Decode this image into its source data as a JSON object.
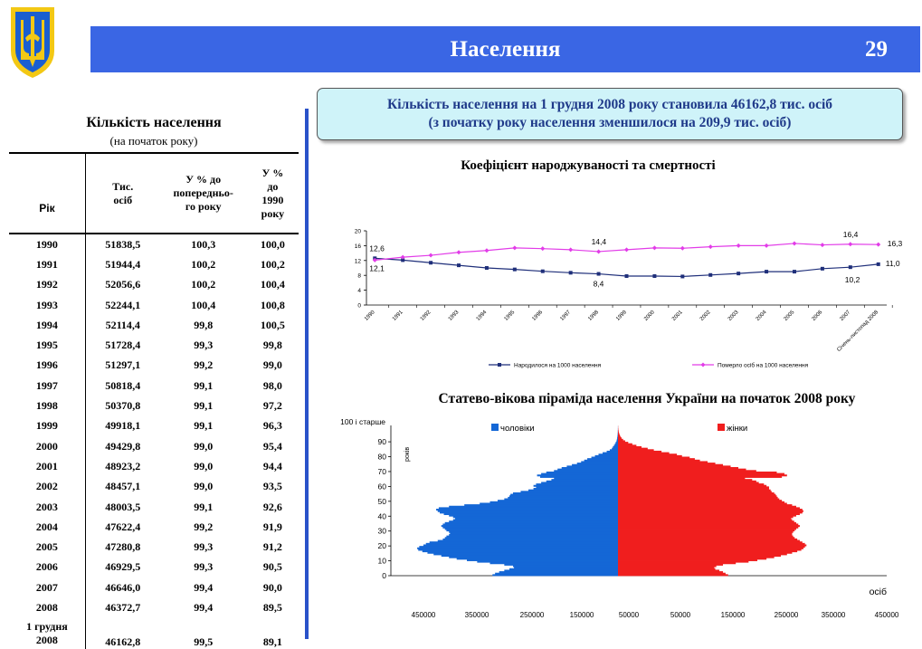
{
  "header": {
    "title": "Населення",
    "page_number": "29"
  },
  "summary": {
    "line1": "Кількість населення на 1 грудня 2008 року становила 46162,8 тис. осіб",
    "line2": "(з початку року населення зменшилося на 209,9 тис. осіб)"
  },
  "table": {
    "title": "Кількість населення",
    "subtitle": "(на початок року)",
    "headers": [
      "Рік",
      "Тис. осіб",
      "У % до попереднього року",
      "У % до 1990 року"
    ],
    "header_prev_lines": [
      "У % до",
      "попередньо-",
      "го року"
    ],
    "header_1990_lines": [
      "У %",
      "до",
      "1990",
      "року"
    ],
    "header_pop_lines": [
      "Тис.",
      "осіб"
    ],
    "rows": [
      [
        "1990",
        "51838,5",
        "100,3",
        "100,0"
      ],
      [
        "1991",
        "51944,4",
        "100,2",
        "100,2"
      ],
      [
        "1992",
        "52056,6",
        "100,2",
        "100,4"
      ],
      [
        "1993",
        "52244,1",
        "100,4",
        "100,8"
      ],
      [
        "1994",
        "52114,4",
        "99,8",
        "100,5"
      ],
      [
        "1995",
        "51728,4",
        "99,3",
        "99,8"
      ],
      [
        "1996",
        "51297,1",
        "99,2",
        "99,0"
      ],
      [
        "1997",
        "50818,4",
        "99,1",
        "98,0"
      ],
      [
        "1998",
        "50370,8",
        "99,1",
        "97,2"
      ],
      [
        "1999",
        "49918,1",
        "99,1",
        "96,3"
      ],
      [
        "2000",
        "49429,8",
        "99,0",
        "95,4"
      ],
      [
        "2001",
        "48923,2",
        "99,0",
        "94,4"
      ],
      [
        "2002",
        "48457,1",
        "99,0",
        "93,5"
      ],
      [
        "2003",
        "48003,5",
        "99,1",
        "92,6"
      ],
      [
        "2004",
        "47622,4",
        "99,2",
        "91,9"
      ],
      [
        "2005",
        "47280,8",
        "99,3",
        "91,2"
      ],
      [
        "2006",
        "46929,5",
        "99,3",
        "90,5"
      ],
      [
        "2007",
        "46646,0",
        "99,4",
        "90,0"
      ],
      [
        "2008",
        "46372,7",
        "99,4",
        "89,5"
      ]
    ],
    "last_row": {
      "year_line1": "1 грудня",
      "year_line2": "2008",
      "pop": "46162,8",
      "prev": "99,5",
      "p1990": "89,1"
    }
  },
  "chart_data": [
    {
      "type": "line",
      "title": "Коефіцієнт народжуваності та смертності",
      "x": [
        "1990",
        "1991",
        "1992",
        "1993",
        "1994",
        "1995",
        "1996",
        "1997",
        "1998",
        "1999",
        "2000",
        "2001",
        "2002",
        "2003",
        "2004",
        "2005",
        "2006",
        "2007",
        "Січень-листопад 2008"
      ],
      "series": [
        {
          "name": "Народилося на 1000 населення",
          "color": "#1f2f7a",
          "values": [
            12.6,
            12.1,
            11.4,
            10.7,
            10.0,
            9.6,
            9.1,
            8.7,
            8.4,
            7.8,
            7.8,
            7.7,
            8.1,
            8.5,
            9.0,
            9.0,
            9.8,
            10.2,
            11.0
          ]
        },
        {
          "name": "Померло осіб на 1000 населення",
          "color": "#e23ce8",
          "values": [
            12.1,
            12.9,
            13.4,
            14.2,
            14.7,
            15.4,
            15.2,
            14.9,
            14.4,
            14.9,
            15.4,
            15.3,
            15.7,
            16.0,
            16.0,
            16.6,
            16.2,
            16.4,
            16.3
          ]
        }
      ],
      "ylim": [
        0,
        20
      ],
      "yticks": [
        "0",
        "4",
        "8",
        "12",
        "16",
        "20"
      ],
      "data_labels": [
        {
          "series": 0,
          "index": 0,
          "text": "12,6"
        },
        {
          "series": 1,
          "index": 0,
          "text": "12,1"
        },
        {
          "series": 1,
          "index": 8,
          "text": "14,4"
        },
        {
          "series": 0,
          "index": 8,
          "text": "8,4"
        },
        {
          "series": 1,
          "index": 17,
          "text": "16,4"
        },
        {
          "series": 1,
          "index": 18,
          "text": "16,3"
        },
        {
          "series": 0,
          "index": 17,
          "text": "10,2"
        },
        {
          "series": 0,
          "index": 18,
          "text": "11,0"
        }
      ],
      "legend": "bottom"
    },
    {
      "type": "bar",
      "title": "Статево-вікова піраміда населення України на початок 2008 року",
      "ylabel": "років",
      "xlabel": "осіб",
      "top_label": "100 і старше",
      "yticks": [
        "0",
        "10",
        "20",
        "30",
        "40",
        "50",
        "60",
        "70",
        "80",
        "90"
      ],
      "xticks": [
        "450000",
        "350000",
        "250000",
        "150000",
        "50000",
        "50000",
        "150000",
        "250000",
        "350000",
        "450000"
      ],
      "series": [
        {
          "name": "чоловіки",
          "color": "#1467d6"
        },
        {
          "name": "жінки",
          "color": "#f01e1e"
        }
      ],
      "ages": [
        0,
        1,
        2,
        3,
        4,
        5,
        6,
        7,
        8,
        9,
        10,
        11,
        12,
        13,
        14,
        15,
        16,
        17,
        18,
        19,
        20,
        21,
        22,
        23,
        24,
        25,
        26,
        27,
        28,
        29,
        30,
        31,
        32,
        33,
        34,
        35,
        36,
        37,
        38,
        39,
        40,
        41,
        42,
        43,
        44,
        45,
        46,
        47,
        48,
        49,
        50,
        51,
        52,
        53,
        54,
        55,
        56,
        57,
        58,
        59,
        60,
        61,
        62,
        63,
        64,
        65,
        66,
        67,
        68,
        69,
        70,
        71,
        72,
        73,
        74,
        75,
        76,
        77,
        78,
        79,
        80,
        81,
        82,
        83,
        84,
        85,
        86,
        87,
        88,
        89,
        90,
        91,
        92,
        93,
        94,
        95,
        96,
        97,
        98,
        99,
        100
      ],
      "male": [
        245000,
        240000,
        232000,
        222000,
        212000,
        203000,
        205000,
        222000,
        250000,
        275000,
        295000,
        315000,
        330000,
        345000,
        360000,
        372000,
        382000,
        390000,
        392000,
        388000,
        380000,
        375000,
        368000,
        352000,
        342000,
        338000,
        335000,
        330000,
        328000,
        330000,
        335000,
        338000,
        342000,
        345000,
        342000,
        338000,
        330000,
        322000,
        318000,
        322000,
        330000,
        340000,
        348000,
        352000,
        355000,
        350000,
        330000,
        300000,
        270000,
        250000,
        235000,
        222000,
        215000,
        212000,
        210000,
        205000,
        190000,
        175000,
        165000,
        160000,
        165000,
        160000,
        150000,
        140000,
        130000,
        125000,
        152000,
        158000,
        150000,
        140000,
        125000,
        118000,
        110000,
        100000,
        90000,
        80000,
        72000,
        66000,
        60000,
        52000,
        45000,
        38000,
        30000,
        22000,
        16000,
        12000,
        10000,
        8000,
        6000,
        4500,
        3000,
        2200,
        1600,
        1200,
        800,
        600,
        400,
        300,
        200,
        150,
        100
      ],
      "female": [
        215000,
        210000,
        205000,
        198000,
        190000,
        188000,
        192000,
        205000,
        230000,
        255000,
        272000,
        290000,
        305000,
        318000,
        330000,
        340000,
        350000,
        358000,
        362000,
        365000,
        368000,
        365000,
        360000,
        355000,
        350000,
        345000,
        342000,
        340000,
        340000,
        342000,
        345000,
        348000,
        352000,
        355000,
        352000,
        348000,
        344000,
        340000,
        338000,
        342000,
        348000,
        355000,
        360000,
        362000,
        360000,
        355000,
        348000,
        340000,
        330000,
        325000,
        320000,
        315000,
        312000,
        310000,
        308000,
        305000,
        300000,
        298000,
        295000,
        295000,
        290000,
        285000,
        275000,
        270000,
        262000,
        248000,
        320000,
        330000,
        325000,
        310000,
        270000,
        250000,
        235000,
        220000,
        205000,
        190000,
        175000,
        160000,
        150000,
        140000,
        125000,
        115000,
        100000,
        85000,
        70000,
        58000,
        46000,
        36000,
        28000,
        20000,
        14000,
        10000,
        7000,
        5000,
        3500,
        2500,
        1600,
        1100,
        700,
        400,
        300
      ]
    }
  ]
}
